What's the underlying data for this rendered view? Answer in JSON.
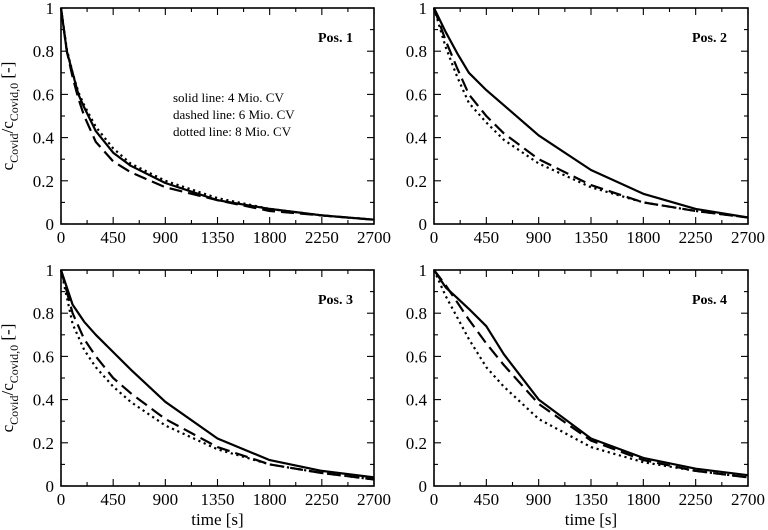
{
  "chart_data": [
    {
      "type": "line",
      "panel_label": "Pos. 1",
      "annotations": [
        "solid line: 4 Mio. CV",
        "dashed line: 6 Mio. CV",
        "dotted line: 8 Mio. CV"
      ],
      "xlim": [
        0,
        2700
      ],
      "ylim": [
        0,
        1
      ],
      "xticks": [
        "0",
        "450",
        "900",
        "1350",
        "1800",
        "2250",
        "2700"
      ],
      "yticks": [
        "0",
        "0.2",
        "0.4",
        "0.6",
        "0.8",
        "1"
      ],
      "ylabel": {
        "main": "c",
        "sub1": "Covid",
        "mid": "/c",
        "sub2": "Covid,0",
        "unit": " [-]"
      },
      "xlabel": "",
      "series": [
        {
          "style": "solid",
          "x": [
            0,
            50,
            100,
            150,
            200,
            300,
            450,
            600,
            900,
            1350,
            1800,
            2250,
            2700
          ],
          "y": [
            1.0,
            0.8,
            0.7,
            0.6,
            0.54,
            0.43,
            0.33,
            0.27,
            0.19,
            0.11,
            0.07,
            0.04,
            0.02
          ]
        },
        {
          "style": "dashed",
          "x": [
            0,
            50,
            100,
            150,
            200,
            300,
            450,
            600,
            900,
            1350,
            1800,
            2250,
            2700
          ],
          "y": [
            1.0,
            0.8,
            0.68,
            0.58,
            0.5,
            0.38,
            0.29,
            0.24,
            0.17,
            0.11,
            0.06,
            0.04,
            0.02
          ]
        },
        {
          "style": "dotted",
          "x": [
            0,
            50,
            100,
            150,
            200,
            300,
            450,
            600,
            900,
            1350,
            1800,
            2250,
            2700
          ],
          "y": [
            1.0,
            0.81,
            0.7,
            0.61,
            0.55,
            0.45,
            0.35,
            0.28,
            0.2,
            0.12,
            0.07,
            0.04,
            0.02
          ]
        }
      ]
    },
    {
      "type": "line",
      "panel_label": "Pos. 2",
      "xlim": [
        0,
        2700
      ],
      "ylim": [
        0,
        1
      ],
      "xticks": [
        "0",
        "450",
        "900",
        "1350",
        "1800",
        "2250",
        "2700"
      ],
      "yticks": [
        "0",
        "0.2",
        "0.4",
        "0.6",
        "0.8",
        "1"
      ],
      "xlabel": "",
      "series": [
        {
          "style": "solid",
          "x": [
            0,
            100,
            200,
            300,
            450,
            600,
            900,
            1350,
            1800,
            2250,
            2700
          ],
          "y": [
            1.0,
            0.89,
            0.79,
            0.7,
            0.62,
            0.55,
            0.41,
            0.25,
            0.14,
            0.07,
            0.03
          ]
        },
        {
          "style": "dashed",
          "x": [
            0,
            100,
            200,
            300,
            450,
            600,
            900,
            1350,
            1800,
            2250,
            2700
          ],
          "y": [
            1.0,
            0.85,
            0.72,
            0.6,
            0.5,
            0.42,
            0.3,
            0.18,
            0.1,
            0.06,
            0.03
          ]
        },
        {
          "style": "dotted",
          "x": [
            0,
            100,
            200,
            300,
            450,
            600,
            900,
            1350,
            1800,
            2250,
            2700
          ],
          "y": [
            1.0,
            0.82,
            0.68,
            0.56,
            0.47,
            0.39,
            0.28,
            0.17,
            0.1,
            0.06,
            0.03
          ]
        }
      ]
    },
    {
      "type": "line",
      "panel_label": "Pos. 3",
      "xlim": [
        0,
        2700
      ],
      "ylim": [
        0,
        1
      ],
      "xticks": [
        "0",
        "450",
        "900",
        "1350",
        "1800",
        "2250",
        "2700"
      ],
      "yticks": [
        "0",
        "0.2",
        "0.4",
        "0.6",
        "0.8",
        "1"
      ],
      "ylabel": {
        "main": "c",
        "sub1": "Covid",
        "mid": "/c",
        "sub2": "Covid,0",
        "unit": " [-]"
      },
      "xlabel": "time [s]",
      "series": [
        {
          "style": "solid",
          "x": [
            0,
            100,
            200,
            300,
            450,
            600,
            900,
            1350,
            1800,
            2250,
            2700
          ],
          "y": [
            1.0,
            0.84,
            0.76,
            0.7,
            0.62,
            0.54,
            0.39,
            0.22,
            0.12,
            0.07,
            0.04
          ]
        },
        {
          "style": "dashed",
          "x": [
            0,
            100,
            200,
            300,
            450,
            600,
            900,
            1350,
            1800,
            2250,
            2700
          ],
          "y": [
            1.0,
            0.8,
            0.68,
            0.6,
            0.5,
            0.43,
            0.31,
            0.18,
            0.1,
            0.06,
            0.03
          ]
        },
        {
          "style": "dotted",
          "x": [
            0,
            100,
            200,
            300,
            450,
            600,
            900,
            1350,
            1800,
            2250,
            2700
          ],
          "y": [
            1.0,
            0.75,
            0.63,
            0.55,
            0.46,
            0.39,
            0.28,
            0.17,
            0.1,
            0.06,
            0.03
          ]
        }
      ]
    },
    {
      "type": "line",
      "panel_label": "Pos. 4",
      "xlim": [
        0,
        2700
      ],
      "ylim": [
        0,
        1
      ],
      "xticks": [
        "0",
        "450",
        "900",
        "1350",
        "1800",
        "2250",
        "2700"
      ],
      "yticks": [
        "0",
        "0.2",
        "0.4",
        "0.6",
        "0.8",
        "1"
      ],
      "xlabel": "time [s]",
      "series": [
        {
          "style": "solid",
          "x": [
            0,
            100,
            200,
            300,
            450,
            600,
            900,
            1350,
            1800,
            2250,
            2700
          ],
          "y": [
            1.0,
            0.92,
            0.87,
            0.82,
            0.74,
            0.61,
            0.4,
            0.22,
            0.13,
            0.08,
            0.05
          ]
        },
        {
          "style": "dashed",
          "x": [
            0,
            100,
            200,
            300,
            450,
            600,
            900,
            1350,
            1800,
            2250,
            2700
          ],
          "y": [
            1.0,
            0.93,
            0.85,
            0.77,
            0.66,
            0.56,
            0.38,
            0.21,
            0.12,
            0.07,
            0.04
          ]
        },
        {
          "style": "dotted",
          "x": [
            0,
            100,
            200,
            300,
            450,
            600,
            900,
            1350,
            1800,
            2250,
            2700
          ],
          "y": [
            1.0,
            0.88,
            0.78,
            0.68,
            0.55,
            0.46,
            0.31,
            0.18,
            0.11,
            0.07,
            0.04
          ]
        }
      ]
    }
  ]
}
